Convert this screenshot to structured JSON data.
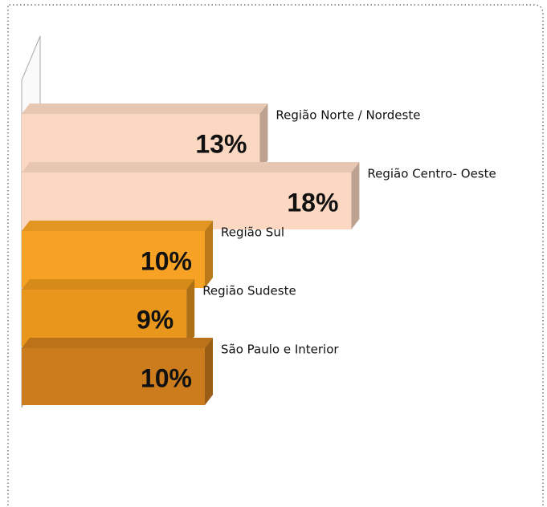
{
  "chart_data": {
    "type": "bar3d-horizontal",
    "categories": [
      "Região  Norte / Nordeste",
      "Região  Centro- Oeste",
      "Região  Sul",
      "Região Sudeste",
      "São Paulo e Interior"
    ],
    "values": [
      13,
      18,
      10,
      9,
      10
    ],
    "value_labels": [
      "13%",
      "18%",
      "10%",
      "9%",
      "10%"
    ],
    "colors": [
      "#fcd8c2",
      "#fcd8c2",
      "#f7a224",
      "#e8961c",
      "#cc7c1c"
    ]
  }
}
